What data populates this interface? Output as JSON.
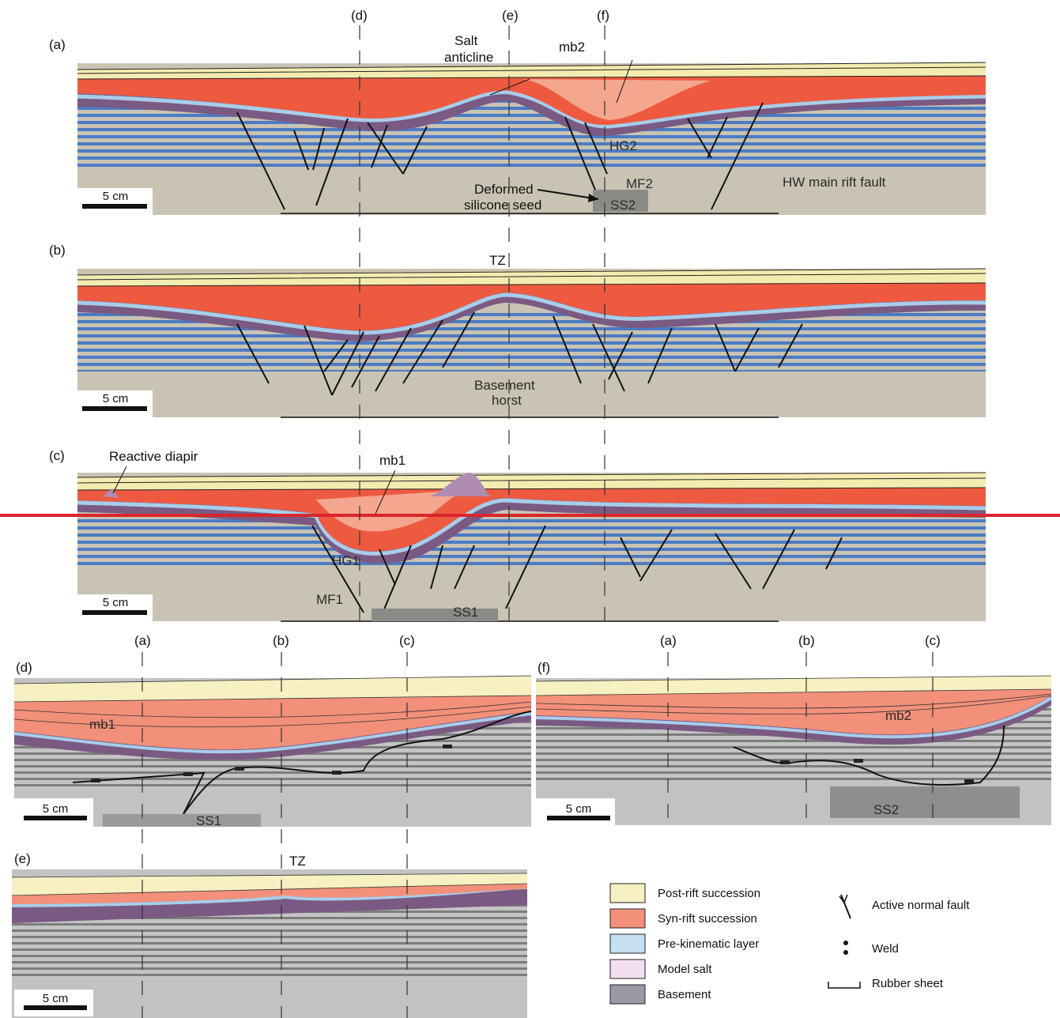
{
  "colors": {
    "post_rift": "#f4ebb0",
    "syn_rift": "#ee5a40",
    "syn_rift_light": "#f4a68e",
    "pre_kinematic": "#a8cdea",
    "model_salt": "#7a5a82",
    "salt_legend": "#f1dcef",
    "pre_rift_blue": "#3a6cb8",
    "basement": "#c9c3b3",
    "gray_basement": "#b8b8b8",
    "guide_red": "#d9262b"
  },
  "guides": {
    "top": [
      "(d)",
      "(e)",
      "(f)"
    ],
    "bottom_d": [
      "(a)",
      "(b)",
      "(c)"
    ],
    "bottom_f": [
      "(a)",
      "(b)",
      "(c)"
    ]
  },
  "panel_a": {
    "tag": "(a)",
    "labels": {
      "salt_anticline_1": "Salt",
      "salt_anticline_2": "anticline",
      "mb2": "mb2",
      "hg2": "HG2",
      "mf2": "MF2",
      "ss2": "SS2",
      "deformed_1": "Deformed",
      "deformed_2": "silicone seed",
      "hw_fault": "HW main rift fault"
    },
    "scale": "5 cm"
  },
  "panel_b": {
    "tag": "(b)",
    "labels": {
      "tz": "TZ",
      "horst_1": "Basement",
      "horst_2": "horst"
    },
    "scale": "5 cm"
  },
  "panel_c": {
    "tag": "(c)",
    "labels": {
      "reactive": "Reactive diapir",
      "mb1": "mb1",
      "hg1": "HG1",
      "mf1": "MF1",
      "ss1": "SS1"
    },
    "scale": "5 cm"
  },
  "panel_d": {
    "tag": "(d)",
    "labels": {
      "mb1": "mb1",
      "ss1": "SS1"
    },
    "scale": "5 cm"
  },
  "panel_f": {
    "tag": "(f)",
    "labels": {
      "mb2": "mb2",
      "ss2": "SS2"
    },
    "scale": "5 cm"
  },
  "panel_e": {
    "tag": "(e)",
    "labels": {
      "tz": "TZ"
    },
    "scale": "5 cm"
  },
  "legend": {
    "items": [
      {
        "label": "Post-rift succession",
        "color": "#f6f0c2"
      },
      {
        "label": "Syn-rift succession",
        "color": "#f3907a"
      },
      {
        "label": "Pre-kinematic layer",
        "color": "#c6dff2"
      },
      {
        "label": "Model salt",
        "color": "#f4dff0"
      },
      {
        "label": "Basement",
        "color": "#9a9aa6"
      }
    ],
    "symbols": {
      "fault": "Active normal fault",
      "weld": "Weld",
      "rubber": "Rubber sheet"
    }
  }
}
